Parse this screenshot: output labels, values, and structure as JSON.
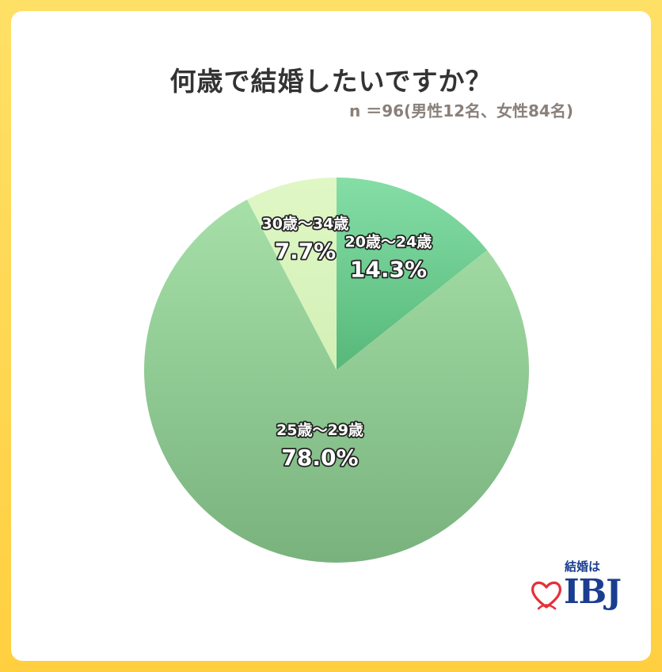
{
  "header": {
    "title": "何歳で結婚したいですか？",
    "subtitle": "n ＝96(男性12名、女性84名)"
  },
  "chart_data": {
    "type": "pie",
    "title": "何歳で結婚したいですか？",
    "subtitle": "n ＝96(男性12名、女性84名)",
    "start_angle": "top",
    "direction": "clockwise",
    "slices": [
      {
        "label": "20歳〜24歳",
        "value": 14.3,
        "display": "14.3%",
        "color_light": "#84dea6",
        "color_dark": "#57b87a"
      },
      {
        "label": "25歳〜29歳",
        "value": 78.0,
        "display": "78.0%",
        "color_light": "#a6e0a8",
        "color_dark": "#79b27d"
      },
      {
        "label": "30歳〜34歳",
        "value": 7.7,
        "display": "7.7%",
        "color_light": "#dff7c5",
        "color_dark": "#d3f0b6"
      }
    ]
  },
  "logo": {
    "tagline": "結婚は",
    "brand": "IBJ",
    "icon": "heart-icon",
    "color": "#1a3d8f",
    "heart_color": "#e5303a"
  }
}
